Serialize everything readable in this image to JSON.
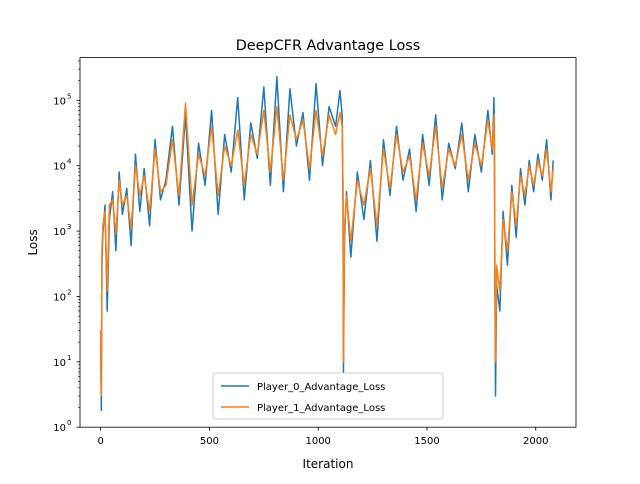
{
  "chart_data": {
    "type": "line",
    "title": "DeepCFR Advantage Loss",
    "xlabel": "Iteration",
    "ylabel": "Loss",
    "yscale": "log",
    "xlim": [
      -95,
      2185
    ],
    "ylim": [
      1,
      450000
    ],
    "x_ticks": [
      {
        "value": 0,
        "label": "0"
      },
      {
        "value": 500,
        "label": "500"
      },
      {
        "value": 1000,
        "label": "1000"
      },
      {
        "value": 1500,
        "label": "1500"
      },
      {
        "value": 2000,
        "label": "2000"
      }
    ],
    "y_ticks": [
      {
        "value": 1,
        "label": "10",
        "exp": "0"
      },
      {
        "value": 10,
        "label": "10",
        "exp": "1"
      },
      {
        "value": 100,
        "label": "10",
        "exp": "2"
      },
      {
        "value": 1000,
        "label": "10",
        "exp": "3"
      },
      {
        "value": 10000,
        "label": "10",
        "exp": "4"
      },
      {
        "value": 100000,
        "label": "10",
        "exp": "5"
      }
    ],
    "legend_position": "lower center",
    "grid": false,
    "series": [
      {
        "name": "Player_0_Advantage_Loss",
        "color": "#1f77b4",
        "x": [
          0,
          3,
          6,
          10,
          20,
          30,
          40,
          55,
          70,
          85,
          100,
          120,
          140,
          160,
          180,
          200,
          225,
          250,
          275,
          300,
          330,
          360,
          390,
          420,
          450,
          480,
          510,
          540,
          570,
          600,
          630,
          660,
          690,
          720,
          750,
          780,
          810,
          840,
          870,
          900,
          930,
          960,
          990,
          1020,
          1050,
          1080,
          1100,
          1110,
          1114,
          1116,
          1118,
          1121,
          1130,
          1150,
          1180,
          1210,
          1240,
          1270,
          1300,
          1330,
          1360,
          1390,
          1420,
          1450,
          1480,
          1510,
          1540,
          1570,
          1600,
          1630,
          1660,
          1690,
          1720,
          1750,
          1780,
          1800,
          1808,
          1810,
          1812,
          1815,
          1820,
          1835,
          1850,
          1870,
          1890,
          1910,
          1930,
          1950,
          1970,
          1990,
          2010,
          2030,
          2050,
          2070,
          2080
        ],
        "y": [
          20,
          1.8,
          300,
          900,
          2500,
          60,
          1500,
          4000,
          500,
          8000,
          1800,
          4500,
          600,
          15000,
          2000,
          9000,
          1200,
          25000,
          3000,
          6000,
          40000,
          2500,
          60000,
          1000,
          22000,
          5000,
          70000,
          1800,
          30000,
          8000,
          110000,
          3000,
          45000,
          13000,
          160000,
          5000,
          230000,
          4000,
          150000,
          20000,
          65000,
          6000,
          180000,
          10000,
          80000,
          40000,
          140000,
          60000,
          3000,
          7,
          50,
          800,
          4000,
          400,
          8000,
          1500,
          12000,
          700,
          25000,
          3500,
          40000,
          6000,
          18000,
          2000,
          30000,
          5000,
          60000,
          3000,
          22000,
          9000,
          45000,
          4000,
          30000,
          8000,
          70000,
          15000,
          110000,
          20000,
          200,
          3,
          150,
          60,
          2000,
          300,
          5000,
          800,
          9000,
          2500,
          12000,
          4000,
          15000,
          6000,
          25000,
          3000,
          12000
        ]
      },
      {
        "name": "Player_1_Advantage_Loss",
        "color": "#ff7f0e",
        "x": [
          0,
          3,
          6,
          10,
          20,
          30,
          40,
          55,
          70,
          85,
          100,
          120,
          140,
          160,
          180,
          200,
          225,
          250,
          275,
          300,
          330,
          360,
          390,
          420,
          450,
          480,
          510,
          540,
          570,
          600,
          630,
          660,
          690,
          720,
          750,
          780,
          810,
          840,
          870,
          900,
          930,
          960,
          990,
          1020,
          1050,
          1080,
          1100,
          1110,
          1114,
          1116,
          1118,
          1121,
          1130,
          1150,
          1180,
          1210,
          1240,
          1270,
          1300,
          1330,
          1360,
          1390,
          1420,
          1450,
          1480,
          1510,
          1540,
          1570,
          1600,
          1630,
          1660,
          1690,
          1720,
          1750,
          1780,
          1800,
          1808,
          1810,
          1812,
          1815,
          1820,
          1835,
          1850,
          1870,
          1890,
          1910,
          1930,
          1950,
          1970,
          1990,
          2010,
          2030,
          2050,
          2070,
          2080
        ],
        "y": [
          30,
          3,
          500,
          1200,
          2000,
          120,
          2500,
          3000,
          900,
          6000,
          2500,
          3500,
          1100,
          10000,
          3500,
          7000,
          2000,
          18000,
          4000,
          5000,
          25000,
          3500,
          90000,
          2500,
          15000,
          7000,
          40000,
          3500,
          20000,
          10000,
          35000,
          5000,
          30000,
          15000,
          70000,
          8000,
          80000,
          6000,
          60000,
          25000,
          50000,
          9000,
          70000,
          14000,
          60000,
          30000,
          65000,
          40000,
          5000,
          10,
          80,
          1200,
          3500,
          700,
          6000,
          2500,
          9000,
          1200,
          18000,
          4500,
          30000,
          8000,
          14000,
          3000,
          22000,
          7000,
          40000,
          4500,
          18000,
          10000,
          30000,
          6000,
          22000,
          10000,
          50000,
          18000,
          60000,
          22000,
          400,
          10,
          300,
          120,
          1500,
          500,
          4000,
          1200,
          7000,
          3500,
          10000,
          5000,
          12000,
          7000,
          18000,
          4000,
          9000
        ]
      }
    ]
  }
}
